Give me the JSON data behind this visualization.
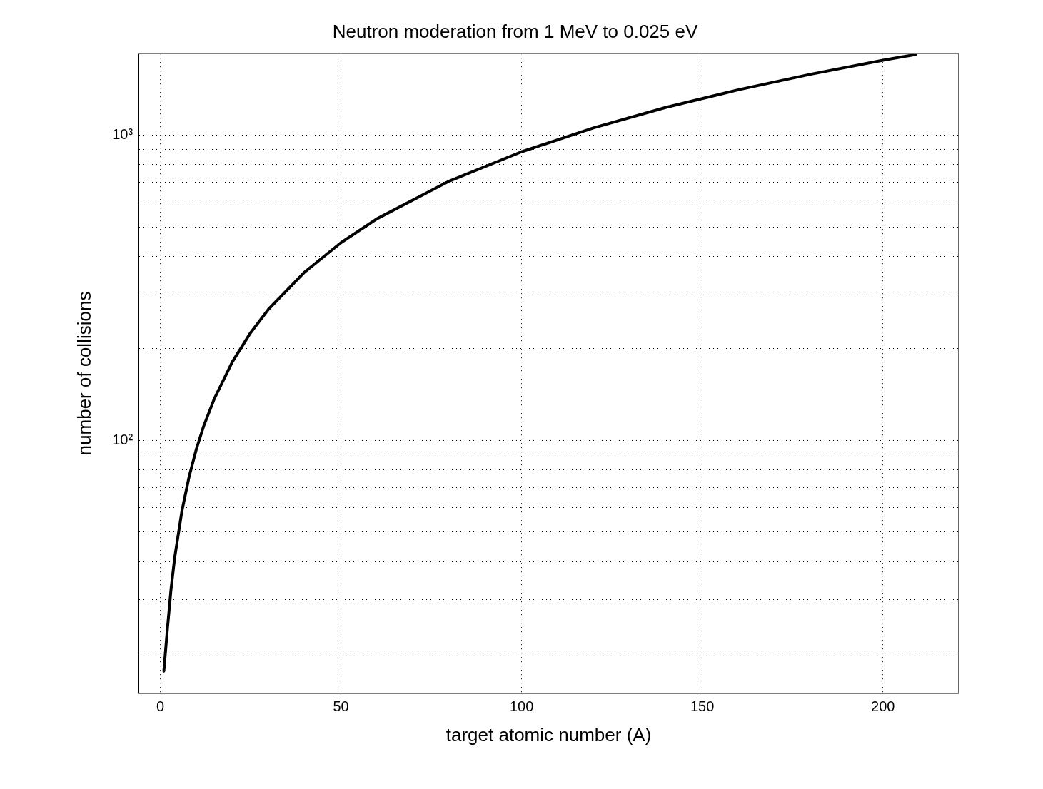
{
  "chart_data": {
    "type": "line",
    "title": "Neutron moderation from 1 MeV to 0.025 eV",
    "xlabel": "target atomic number (A)",
    "ylabel": "number of collisions",
    "x": [
      1,
      2,
      3,
      4,
      6,
      8,
      10,
      12,
      15,
      20,
      25,
      30,
      40,
      50,
      60,
      80,
      100,
      120,
      140,
      160,
      180,
      200,
      209
    ],
    "series": [
      {
        "color": "#000000",
        "values": [
          17.5,
          24.2,
          32.6,
          41.2,
          58.6,
          76,
          93.5,
          111,
          137,
          181,
          225,
          269,
          356,
          444,
          532,
          707,
          882,
          1057,
          1233,
          1408,
          1583,
          1759,
          1837
        ]
      }
    ],
    "xlim": [
      -6,
      221
    ],
    "xticks": [
      0,
      50,
      100,
      150,
      200
    ],
    "ylim": [
      14.8,
      1850
    ],
    "yticks": [
      {
        "value": 20,
        "label": null
      },
      {
        "value": 30,
        "label": null
      },
      {
        "value": 40,
        "label": null
      },
      {
        "value": 50,
        "label": null
      },
      {
        "value": 60,
        "label": null
      },
      {
        "value": 70,
        "label": null
      },
      {
        "value": 80,
        "label": null
      },
      {
        "value": 90,
        "label": null
      },
      {
        "value": 100,
        "label": "10²"
      },
      {
        "value": 200,
        "label": null
      },
      {
        "value": 300,
        "label": null
      },
      {
        "value": 400,
        "label": null
      },
      {
        "value": 500,
        "label": null
      },
      {
        "value": 600,
        "label": null
      },
      {
        "value": 700,
        "label": null
      },
      {
        "value": 800,
        "label": null
      },
      {
        "value": 900,
        "label": null
      },
      {
        "value": 1000,
        "label": "10³"
      }
    ],
    "log": "y",
    "grid": true,
    "legend": false,
    "marker": "none",
    "line_style": "solid"
  }
}
